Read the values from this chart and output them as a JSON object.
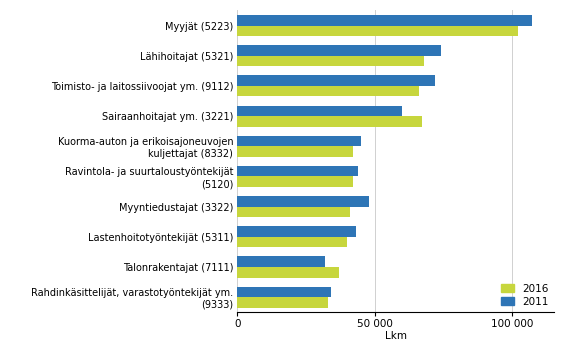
{
  "categories": [
    "Myyjät (5223)",
    "Lähihoitajat (5321)",
    "Toimisto- ja laitossiivoojat ym. (9112)",
    "Sairaanhoitajat ym. (3221)",
    "Kuorma-auton ja erikoisajoneuvojen\nkuljettajat (8332)",
    "Ravintola- ja suurtaloustyöntekijät\n(5120)",
    "Myyntiedustajat (3322)",
    "Lastenhoitotyöntekijät (5311)",
    "Talonrakentajat (7111)",
    "Rahdinkäsittelijät, varastotyöntekijät ym.\n(9333)"
  ],
  "values_2016": [
    102000,
    68000,
    66000,
    67000,
    42000,
    42000,
    41000,
    40000,
    37000,
    33000
  ],
  "values_2011": [
    107000,
    74000,
    72000,
    60000,
    45000,
    44000,
    48000,
    43000,
    32000,
    34000
  ],
  "color_2016": "#c7d63d",
  "color_2011": "#2e75b6",
  "xlabel": "Lkm",
  "xlim": [
    0,
    115000
  ],
  "xticks": [
    0,
    50000,
    100000
  ],
  "xticklabels": [
    "0",
    "50 000",
    "100 000"
  ],
  "legend_2016": "2016",
  "legend_2011": "2011",
  "bar_height": 0.35,
  "grid_color": "#d0d0d0",
  "background_color": "#ffffff",
  "label_fontsize": 7.0,
  "tick_fontsize": 7.5
}
